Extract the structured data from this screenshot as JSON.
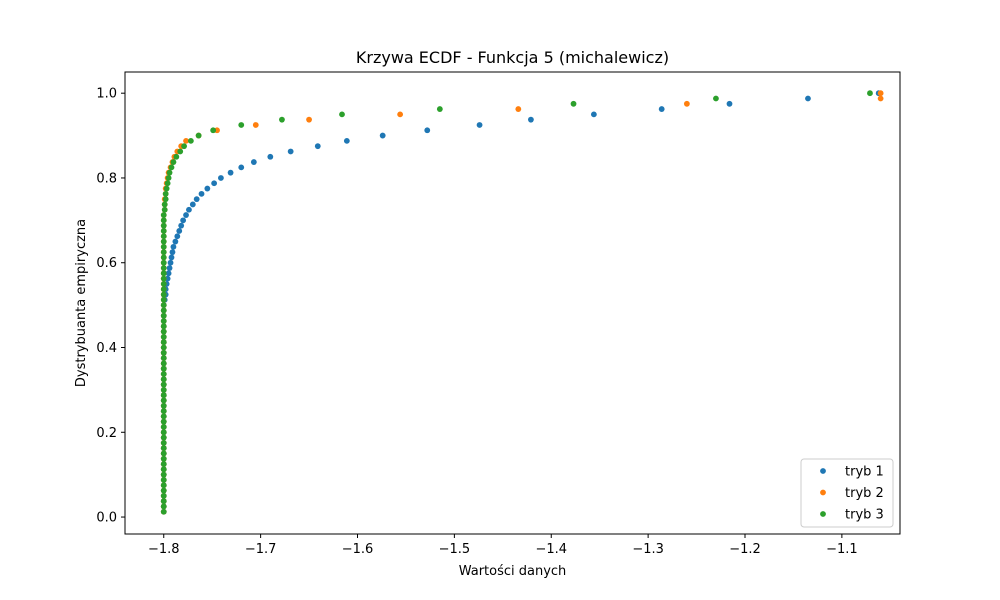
{
  "chart_data": {
    "type": "scatter",
    "title": "Krzywa ECDF - Funkcja 5 (michalewicz)",
    "xlabel": "Wartości danych",
    "ylabel": "Dystrybuanta empiryczna",
    "xlim": [
      -1.84,
      -1.04
    ],
    "ylim": [
      -0.04,
      1.05
    ],
    "xticks": [
      -1.8,
      -1.7,
      -1.6,
      -1.5,
      -1.4,
      -1.3,
      -1.2,
      -1.1
    ],
    "xtick_labels": [
      "−1.8",
      "−1.7",
      "−1.6",
      "−1.5",
      "−1.4",
      "−1.3",
      "−1.2",
      "−1.1"
    ],
    "yticks": [
      0.0,
      0.2,
      0.4,
      0.6,
      0.8,
      1.0
    ],
    "ytick_labels": [
      "0.0",
      "0.2",
      "0.4",
      "0.6",
      "0.8",
      "1.0"
    ],
    "grid": false,
    "legend_position": "bottom-right",
    "series": [
      {
        "name": "tryb 1",
        "color": "#1f77b4",
        "n": 80,
        "x": [
          -1.8,
          -1.8,
          -1.8,
          -1.8,
          -1.8,
          -1.8,
          -1.8,
          -1.8,
          -1.8,
          -1.8,
          -1.8,
          -1.8,
          -1.8,
          -1.8,
          -1.8,
          -1.8,
          -1.8,
          -1.8,
          -1.8,
          -1.8,
          -1.8,
          -1.8,
          -1.8,
          -1.8,
          -1.8,
          -1.8,
          -1.8,
          -1.8,
          -1.8,
          -1.8,
          -1.8,
          -1.8,
          -1.8,
          -1.8,
          -1.8,
          -1.8,
          -1.8,
          -1.8,
          -1.8,
          -1.8,
          -1.799,
          -1.798,
          -1.798,
          -1.797,
          -1.796,
          -1.795,
          -1.794,
          -1.793,
          -1.792,
          -1.791,
          -1.79,
          -1.788,
          -1.786,
          -1.784,
          -1.782,
          -1.78,
          -1.777,
          -1.774,
          -1.77,
          -1.766,
          -1.761,
          -1.755,
          -1.748,
          -1.741,
          -1.731,
          -1.72,
          -1.707,
          -1.69,
          -1.669,
          -1.641,
          -1.611,
          -1.574,
          -1.528,
          -1.474,
          -1.421,
          -1.356,
          -1.286,
          -1.216,
          -1.135,
          -1.062
        ],
        "y": [
          0.0125,
          0.025,
          0.0375,
          0.05,
          0.0625,
          0.075,
          0.0875,
          0.1,
          0.1125,
          0.125,
          0.1375,
          0.15,
          0.1625,
          0.175,
          0.1875,
          0.2,
          0.2125,
          0.225,
          0.2375,
          0.25,
          0.2625,
          0.275,
          0.2875,
          0.3,
          0.3125,
          0.325,
          0.3375,
          0.35,
          0.3625,
          0.375,
          0.3875,
          0.4,
          0.4125,
          0.425,
          0.4375,
          0.45,
          0.4625,
          0.475,
          0.4875,
          0.5,
          0.5125,
          0.525,
          0.5375,
          0.55,
          0.5625,
          0.575,
          0.5875,
          0.6,
          0.6125,
          0.625,
          0.6375,
          0.65,
          0.6625,
          0.675,
          0.6875,
          0.7,
          0.7125,
          0.725,
          0.7375,
          0.75,
          0.7625,
          0.775,
          0.7875,
          0.8,
          0.8125,
          0.825,
          0.8375,
          0.85,
          0.8625,
          0.875,
          0.8875,
          0.9,
          0.9125,
          0.925,
          0.9375,
          0.95,
          0.9625,
          0.975,
          0.9875,
          1.0
        ]
      },
      {
        "name": "tryb 2",
        "color": "#ff7f0e",
        "n": 80,
        "x": [
          -1.8,
          -1.8,
          -1.8,
          -1.8,
          -1.8,
          -1.8,
          -1.8,
          -1.8,
          -1.8,
          -1.8,
          -1.8,
          -1.8,
          -1.8,
          -1.8,
          -1.8,
          -1.8,
          -1.8,
          -1.8,
          -1.8,
          -1.8,
          -1.8,
          -1.8,
          -1.8,
          -1.8,
          -1.8,
          -1.8,
          -1.8,
          -1.8,
          -1.8,
          -1.8,
          -1.8,
          -1.8,
          -1.8,
          -1.8,
          -1.8,
          -1.8,
          -1.8,
          -1.8,
          -1.8,
          -1.8,
          -1.8,
          -1.8,
          -1.8,
          -1.8,
          -1.8,
          -1.8,
          -1.8,
          -1.8,
          -1.8,
          -1.8,
          -1.8,
          -1.8,
          -1.8,
          -1.8,
          -1.8,
          -1.8,
          -1.8,
          -1.799,
          -1.799,
          -1.799,
          -1.798,
          -1.798,
          -1.797,
          -1.796,
          -1.795,
          -1.793,
          -1.791,
          -1.789,
          -1.786,
          -1.782,
          -1.777,
          -1.764,
          -1.745,
          -1.705,
          -1.65,
          -1.556,
          -1.434,
          -1.26,
          -1.06,
          -1.06
        ],
        "y": [
          0.0125,
          0.025,
          0.0375,
          0.05,
          0.0625,
          0.075,
          0.0875,
          0.1,
          0.1125,
          0.125,
          0.1375,
          0.15,
          0.1625,
          0.175,
          0.1875,
          0.2,
          0.2125,
          0.225,
          0.2375,
          0.25,
          0.2625,
          0.275,
          0.2875,
          0.3,
          0.3125,
          0.325,
          0.3375,
          0.35,
          0.3625,
          0.375,
          0.3875,
          0.4,
          0.4125,
          0.425,
          0.4375,
          0.45,
          0.4625,
          0.475,
          0.4875,
          0.5,
          0.5125,
          0.525,
          0.5375,
          0.55,
          0.5625,
          0.575,
          0.5875,
          0.6,
          0.6125,
          0.625,
          0.6375,
          0.65,
          0.6625,
          0.675,
          0.6875,
          0.7,
          0.7125,
          0.725,
          0.7375,
          0.75,
          0.7625,
          0.775,
          0.7875,
          0.8,
          0.8125,
          0.825,
          0.8375,
          0.85,
          0.8625,
          0.875,
          0.8875,
          0.9,
          0.9125,
          0.925,
          0.9375,
          0.95,
          0.9625,
          0.975,
          0.9875,
          1.0
        ]
      },
      {
        "name": "tryb 3",
        "color": "#2ca02c",
        "n": 80,
        "x": [
          -1.8,
          -1.8,
          -1.8,
          -1.8,
          -1.8,
          -1.8,
          -1.8,
          -1.8,
          -1.8,
          -1.8,
          -1.8,
          -1.8,
          -1.8,
          -1.8,
          -1.8,
          -1.8,
          -1.8,
          -1.8,
          -1.8,
          -1.8,
          -1.8,
          -1.8,
          -1.8,
          -1.8,
          -1.8,
          -1.8,
          -1.8,
          -1.8,
          -1.8,
          -1.8,
          -1.8,
          -1.8,
          -1.8,
          -1.8,
          -1.8,
          -1.8,
          -1.8,
          -1.8,
          -1.8,
          -1.8,
          -1.8,
          -1.8,
          -1.8,
          -1.8,
          -1.8,
          -1.8,
          -1.8,
          -1.8,
          -1.8,
          -1.8,
          -1.8,
          -1.8,
          -1.8,
          -1.8,
          -1.8,
          -1.8,
          -1.8,
          -1.799,
          -1.799,
          -1.798,
          -1.798,
          -1.797,
          -1.796,
          -1.795,
          -1.794,
          -1.792,
          -1.79,
          -1.787,
          -1.783,
          -1.779,
          -1.772,
          -1.764,
          -1.749,
          -1.72,
          -1.678,
          -1.616,
          -1.515,
          -1.377,
          -1.23,
          -1.071
        ],
        "y": [
          0.0125,
          0.025,
          0.0375,
          0.05,
          0.0625,
          0.075,
          0.0875,
          0.1,
          0.1125,
          0.125,
          0.1375,
          0.15,
          0.1625,
          0.175,
          0.1875,
          0.2,
          0.2125,
          0.225,
          0.2375,
          0.25,
          0.2625,
          0.275,
          0.2875,
          0.3,
          0.3125,
          0.325,
          0.3375,
          0.35,
          0.3625,
          0.375,
          0.3875,
          0.4,
          0.4125,
          0.425,
          0.4375,
          0.45,
          0.4625,
          0.475,
          0.4875,
          0.5,
          0.5125,
          0.525,
          0.5375,
          0.55,
          0.5625,
          0.575,
          0.5875,
          0.6,
          0.6125,
          0.625,
          0.6375,
          0.65,
          0.6625,
          0.675,
          0.6875,
          0.7,
          0.7125,
          0.725,
          0.7375,
          0.75,
          0.7625,
          0.775,
          0.7875,
          0.8,
          0.8125,
          0.825,
          0.8375,
          0.85,
          0.8625,
          0.875,
          0.8875,
          0.9,
          0.9125,
          0.925,
          0.9375,
          0.95,
          0.9625,
          0.975,
          0.9875,
          1.0
        ]
      }
    ]
  }
}
